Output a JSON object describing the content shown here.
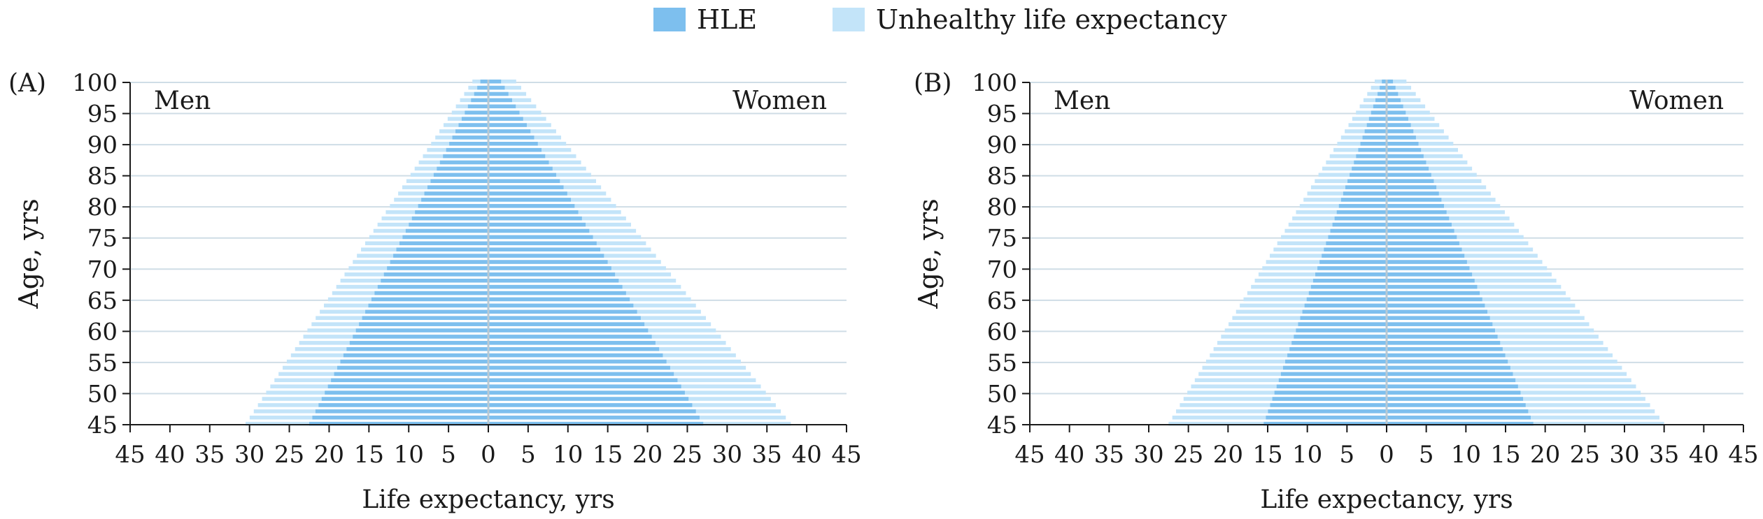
{
  "colors": {
    "hle": "#7dbfee",
    "unhealthy": "#c3e4f9",
    "grid": "#cfdde6",
    "axis": "#1a1a1a",
    "center_line": "#b8c9d4"
  },
  "legend": {
    "hle_label": "HLE",
    "unhealthy_label": "Unhealthy life expectancy"
  },
  "chart_data": [
    {
      "type": "bar",
      "panel_label": "(A)",
      "left_label": "Men",
      "right_label": "Women",
      "xlabel": "Life expectancy, yrs",
      "ylabel": "Age, yrs",
      "xlim": [
        -45,
        45
      ],
      "xticks": [
        45,
        40,
        35,
        30,
        25,
        20,
        15,
        10,
        5,
        0,
        5,
        10,
        15,
        20,
        25,
        30,
        35,
        40,
        45
      ],
      "ylim": [
        45,
        100
      ],
      "yticks": [
        45,
        50,
        55,
        60,
        65,
        70,
        75,
        80,
        85,
        90,
        95,
        100
      ],
      "grid": true,
      "ages": [
        45,
        100
      ],
      "series": [
        {
          "name": "HLE",
          "side": "men",
          "values_at_ends": [
            22.5,
            1.0
          ]
        },
        {
          "name": "Unhealthy life expectancy",
          "side": "men",
          "total_at_ends": [
            30.5,
            2.0
          ]
        },
        {
          "name": "HLE",
          "side": "women",
          "values_at_ends": [
            27.0,
            1.6
          ]
        },
        {
          "name": "Unhealthy life expectancy",
          "side": "women",
          "total_at_ends": [
            38.0,
            3.5
          ]
        }
      ]
    },
    {
      "type": "bar",
      "panel_label": "(B)",
      "left_label": "Men",
      "right_label": "Women",
      "xlabel": "Life expectancy, yrs",
      "ylabel": "Age, yrs",
      "xlim": [
        -45,
        45
      ],
      "xticks": [
        45,
        40,
        35,
        30,
        25,
        20,
        15,
        10,
        5,
        0,
        5,
        10,
        15,
        20,
        25,
        30,
        35,
        40,
        45
      ],
      "ylim": [
        45,
        100
      ],
      "yticks": [
        45,
        50,
        55,
        60,
        65,
        70,
        75,
        80,
        85,
        90,
        95,
        100
      ],
      "grid": true,
      "ages": [
        45,
        100
      ],
      "series": [
        {
          "name": "HLE",
          "side": "men",
          "values_at_ends": [
            15.5,
            0.6
          ]
        },
        {
          "name": "Unhealthy life expectancy",
          "side": "men",
          "total_at_ends": [
            27.5,
            1.5
          ]
        },
        {
          "name": "HLE",
          "side": "women",
          "values_at_ends": [
            18.5,
            0.8
          ]
        },
        {
          "name": "Unhealthy life expectancy",
          "side": "women",
          "total_at_ends": [
            35.0,
            2.5
          ]
        }
      ]
    }
  ]
}
